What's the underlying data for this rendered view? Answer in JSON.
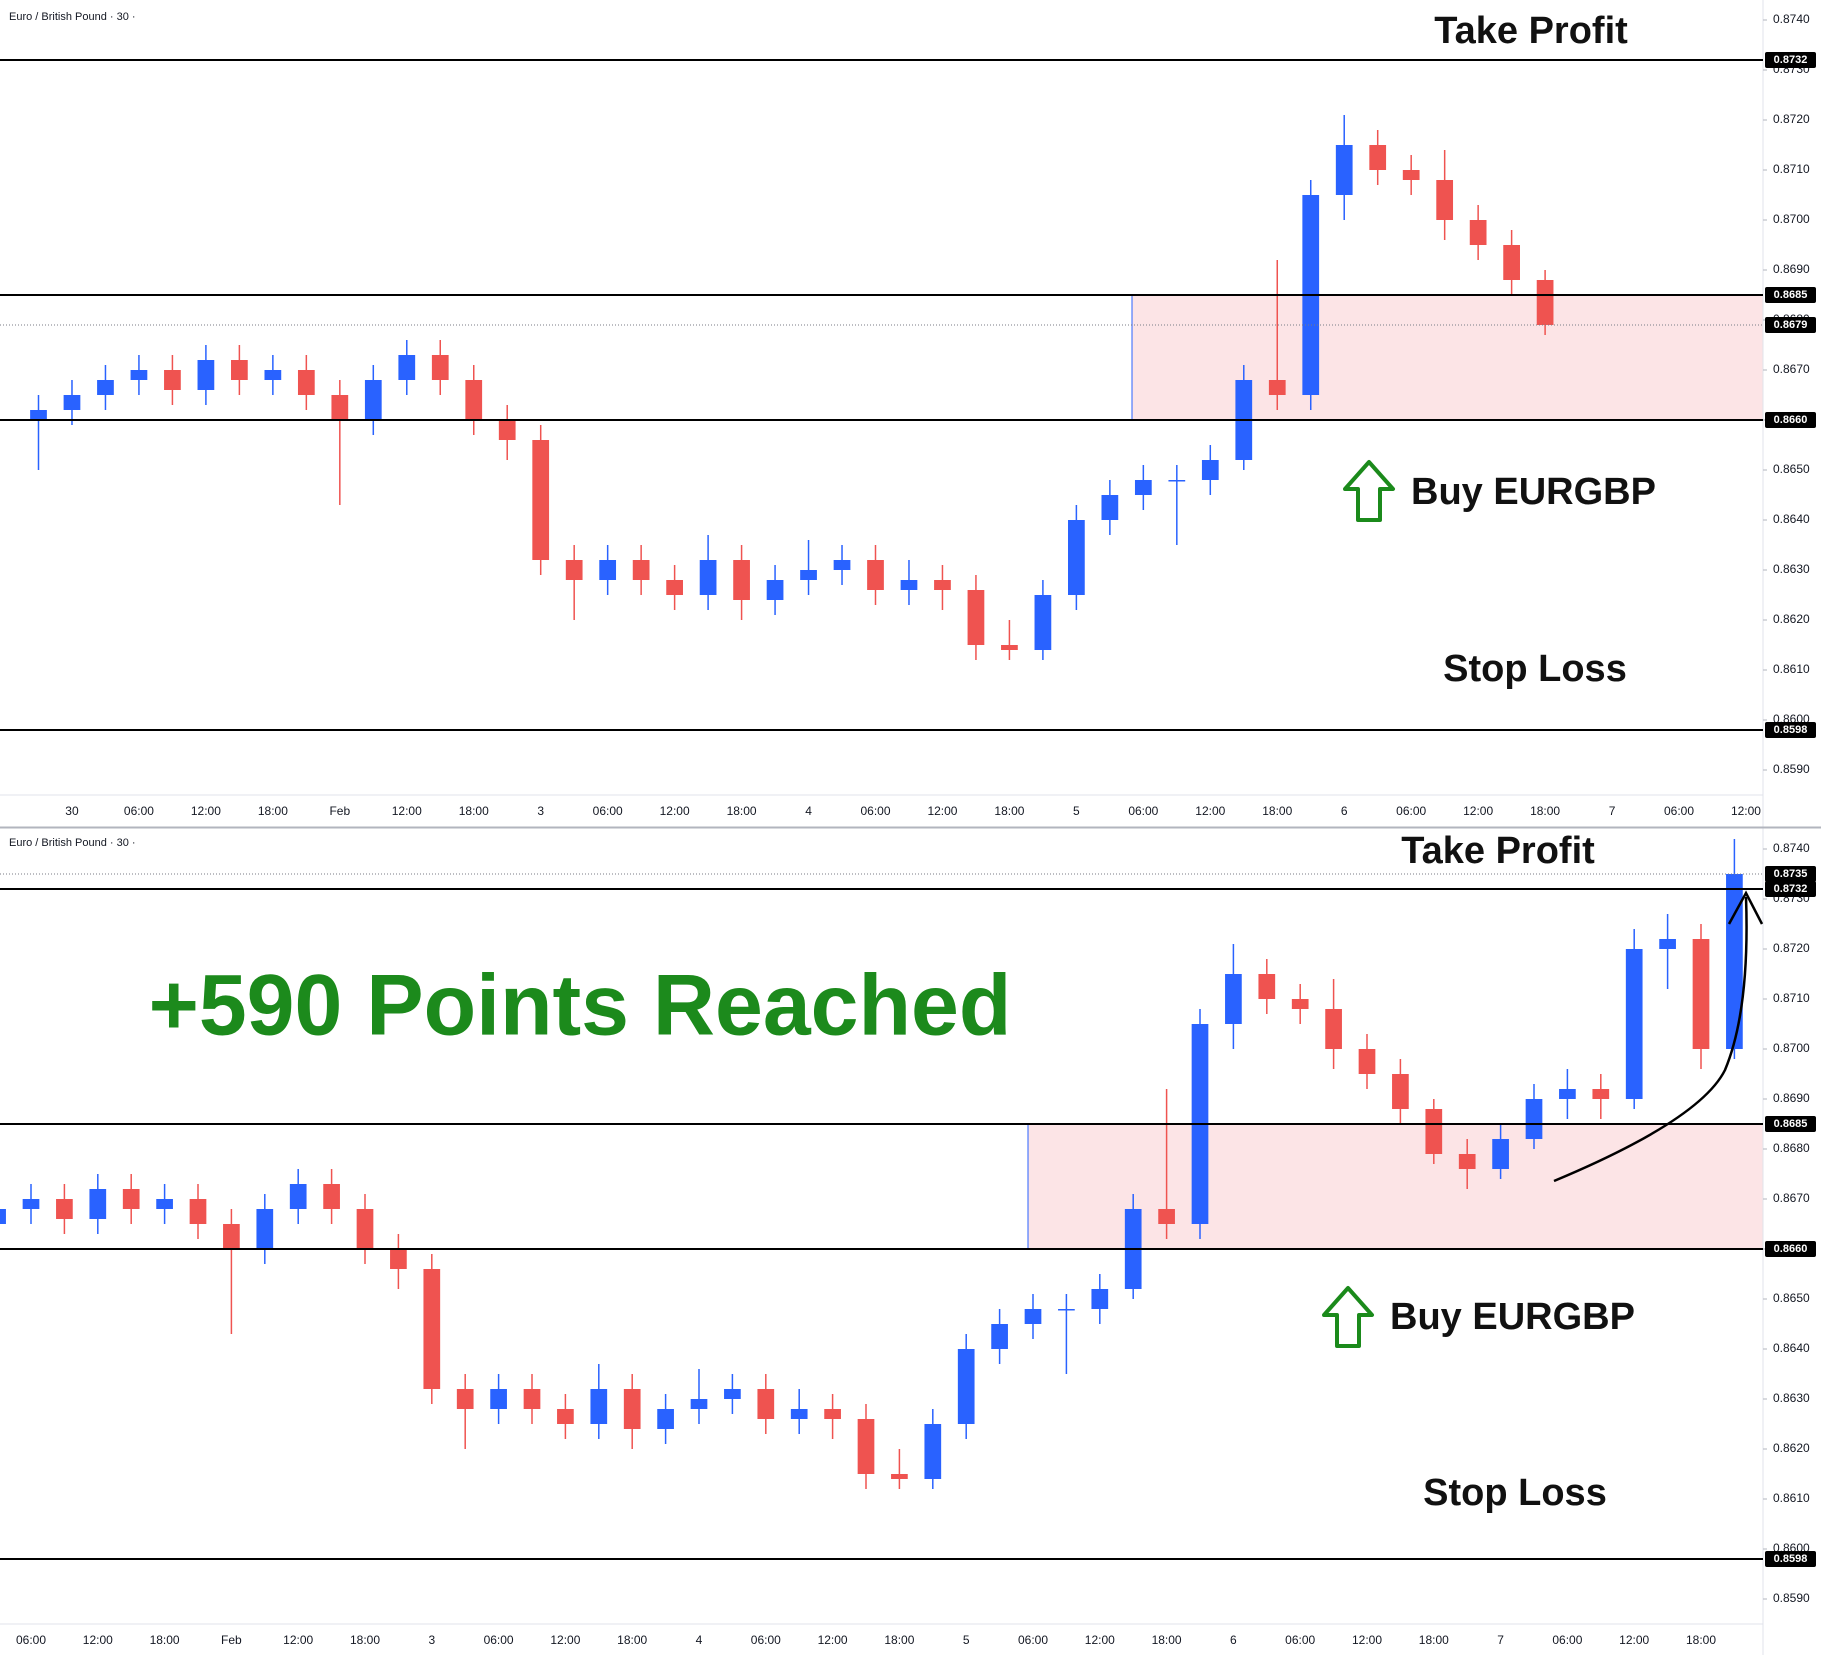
{
  "chart_data": [
    {
      "type": "candlestick",
      "title": "Euro / British Pound · 30 ·",
      "categories": [
        null,
        "30",
        null,
        "06:00",
        null,
        "12:00",
        null,
        "18:00",
        null,
        "Feb",
        null,
        "12:00",
        null,
        "18:00",
        null,
        "3",
        null,
        "06:00",
        null,
        "12:00",
        null,
        "18:00",
        null,
        "4",
        null,
        "06:00",
        null,
        "12:00",
        null,
        "18:00",
        null,
        "5",
        null,
        "06:00",
        null,
        "12:00",
        null,
        "18:00",
        null,
        "6",
        null,
        "06:00",
        null,
        "12:00",
        null,
        "18:00",
        null,
        "7",
        null,
        "06:00",
        null,
        "12:00",
        null
      ],
      "open": [
        0.866,
        0.8662,
        0.8665,
        0.8668,
        0.867,
        0.8666,
        0.8672,
        0.8668,
        0.867,
        0.8665,
        0.866,
        0.8668,
        0.8673,
        0.8668,
        0.866,
        0.8656,
        0.8632,
        0.8628,
        0.8632,
        0.8628,
        0.8625,
        0.8632,
        0.8624,
        0.8628,
        0.863,
        0.8632,
        0.8626,
        0.8628,
        0.8626,
        0.8615,
        0.8614,
        0.8625,
        0.864,
        0.8645,
        0.8648,
        0.8648,
        0.8652,
        0.8668,
        0.8665,
        0.8705,
        0.8715,
        0.871,
        0.8708,
        0.87,
        0.8695,
        0.8688,
        null,
        null,
        null,
        null,
        null,
        null,
        null
      ],
      "high": [
        0.8665,
        0.8668,
        0.8671,
        0.8673,
        0.8673,
        0.8675,
        0.8675,
        0.8673,
        0.8673,
        0.8668,
        0.8671,
        0.8676,
        0.8676,
        0.8671,
        0.8663,
        0.8659,
        0.8635,
        0.8635,
        0.8635,
        0.8631,
        0.8637,
        0.8635,
        0.8631,
        0.8636,
        0.8635,
        0.8635,
        0.8632,
        0.8631,
        0.8629,
        0.862,
        0.8628,
        0.8643,
        0.8648,
        0.8651,
        0.8651,
        0.8655,
        0.8671,
        0.8692,
        0.8708,
        0.8721,
        0.8718,
        0.8713,
        0.8714,
        0.8703,
        0.8698,
        0.869,
        null,
        null,
        null,
        null,
        null,
        null,
        null
      ],
      "low": [
        0.865,
        0.8659,
        0.8662,
        0.8665,
        0.8663,
        0.8663,
        0.8665,
        0.8665,
        0.8662,
        0.8643,
        0.8657,
        0.8665,
        0.8665,
        0.8657,
        0.8652,
        0.8629,
        0.862,
        0.8625,
        0.8625,
        0.8622,
        0.8622,
        0.862,
        0.8621,
        0.8625,
        0.8627,
        0.8623,
        0.8623,
        0.8622,
        0.8612,
        0.8612,
        0.8612,
        0.8622,
        0.8637,
        0.8642,
        0.8635,
        0.8645,
        0.865,
        0.8662,
        0.8662,
        0.87,
        0.8707,
        0.8705,
        0.8696,
        0.8692,
        0.8685,
        0.8677,
        null,
        null,
        null,
        null,
        null,
        null,
        null
      ],
      "close": [
        0.8662,
        0.8665,
        0.8668,
        0.867,
        0.8666,
        0.8672,
        0.8668,
        0.867,
        0.8665,
        0.866,
        0.8668,
        0.8673,
        0.8668,
        0.866,
        0.8656,
        0.8632,
        0.8628,
        0.8632,
        0.8628,
        0.8625,
        0.8632,
        0.8624,
        0.8628,
        0.863,
        0.8632,
        0.8626,
        0.8628,
        0.8626,
        0.8615,
        0.8614,
        0.8625,
        0.864,
        0.8645,
        0.8648,
        0.8648,
        0.8652,
        0.8668,
        0.8665,
        0.8705,
        0.8715,
        0.871,
        0.8708,
        0.87,
        0.8695,
        0.8688,
        0.8679,
        null,
        null,
        null,
        null,
        null,
        null,
        null
      ],
      "up_color": "#2962ff",
      "down_color": "#ef5350",
      "ylim": [
        0.8585,
        0.8744
      ],
      "yticks": [
        {
          "value": 0.859,
          "label": "0.8590"
        },
        {
          "value": 0.86,
          "label": "0.8600"
        },
        {
          "value": 0.861,
          "label": "0.8610"
        },
        {
          "value": 0.862,
          "label": "0.8620"
        },
        {
          "value": 0.863,
          "label": "0.8630"
        },
        {
          "value": 0.864,
          "label": "0.8640"
        },
        {
          "value": 0.865,
          "label": "0.8650"
        },
        {
          "value": 0.866,
          "label": "0.8660"
        },
        {
          "value": 0.867,
          "label": "0.8670"
        },
        {
          "value": 0.868,
          "label": "0.8680"
        },
        {
          "value": 0.869,
          "label": "0.8690"
        },
        {
          "value": 0.87,
          "label": "0.8700"
        },
        {
          "value": 0.871,
          "label": "0.8710"
        },
        {
          "value": 0.872,
          "label": "0.8720"
        },
        {
          "value": 0.873,
          "label": "0.8730"
        },
        {
          "value": 0.874,
          "label": "0.8740"
        }
      ],
      "levels": [
        {
          "value": 0.8732,
          "label": "0.8732"
        },
        {
          "value": 0.8685,
          "label": "0.8685"
        },
        {
          "value": 0.866,
          "label": "0.8660"
        },
        {
          "value": 0.8598,
          "label": "0.8598"
        }
      ],
      "last_price": {
        "value": 0.8679,
        "label": "0.8679"
      },
      "zone": [
        0.866,
        0.8685
      ],
      "annotations": {
        "take_profit": "Take Profit",
        "buy": "Buy EURGBP",
        "stop_loss": "Stop Loss"
      }
    },
    {
      "type": "candlestick",
      "title": "Euro / British Pound · 30 ·",
      "categories": [
        null,
        "06:00",
        null,
        "12:00",
        null,
        "18:00",
        null,
        "Feb",
        null,
        "12:00",
        null,
        "18:00",
        null,
        "3",
        null,
        "06:00",
        null,
        "12:00",
        null,
        "18:00",
        null,
        "4",
        null,
        "06:00",
        null,
        "12:00",
        null,
        "18:00",
        null,
        "5",
        null,
        "06:00",
        null,
        "12:00",
        null,
        "18:00",
        null,
        "6",
        null,
        "06:00",
        null,
        "12:00",
        null,
        "18:00",
        null,
        "7",
        null,
        "06:00",
        null,
        "12:00",
        null,
        "18:00",
        null
      ],
      "open": [
        0.8665,
        0.8668,
        0.867,
        0.8666,
        0.8672,
        0.8668,
        0.867,
        0.8665,
        0.866,
        0.8668,
        0.8673,
        0.8668,
        0.866,
        0.8656,
        0.8632,
        0.8628,
        0.8632,
        0.8628,
        0.8625,
        0.8632,
        0.8624,
        0.8628,
        0.863,
        0.8632,
        0.8626,
        0.8628,
        0.8626,
        0.8615,
        0.8614,
        0.8625,
        0.864,
        0.8645,
        0.8648,
        0.8648,
        0.8652,
        0.8668,
        0.8665,
        0.8705,
        0.8715,
        0.871,
        0.8708,
        0.87,
        0.8695,
        0.8688,
        0.8679,
        0.8676,
        0.8682,
        0.869,
        0.8692,
        0.869,
        0.872,
        0.8722,
        0.87
      ],
      "high": [
        0.8671,
        0.8673,
        0.8673,
        0.8675,
        0.8675,
        0.8673,
        0.8673,
        0.8668,
        0.8671,
        0.8676,
        0.8676,
        0.8671,
        0.8663,
        0.8659,
        0.8635,
        0.8635,
        0.8635,
        0.8631,
        0.8637,
        0.8635,
        0.8631,
        0.8636,
        0.8635,
        0.8635,
        0.8632,
        0.8631,
        0.8629,
        0.862,
        0.8628,
        0.8643,
        0.8648,
        0.8651,
        0.8651,
        0.8655,
        0.8671,
        0.8692,
        0.8708,
        0.8721,
        0.8718,
        0.8713,
        0.8714,
        0.8703,
        0.8698,
        0.869,
        0.8682,
        0.8685,
        0.8693,
        0.8696,
        0.8695,
        0.8724,
        0.8727,
        0.8725,
        0.8742
      ],
      "low": [
        0.8662,
        0.8665,
        0.8663,
        0.8663,
        0.8665,
        0.8665,
        0.8662,
        0.8643,
        0.8657,
        0.8665,
        0.8665,
        0.8657,
        0.8652,
        0.8629,
        0.862,
        0.8625,
        0.8625,
        0.8622,
        0.8622,
        0.862,
        0.8621,
        0.8625,
        0.8627,
        0.8623,
        0.8623,
        0.8622,
        0.8612,
        0.8612,
        0.8612,
        0.8622,
        0.8637,
        0.8642,
        0.8635,
        0.8645,
        0.865,
        0.8662,
        0.8662,
        0.87,
        0.8707,
        0.8705,
        0.8696,
        0.8692,
        0.8685,
        0.8677,
        0.8672,
        0.8674,
        0.868,
        0.8686,
        0.8686,
        0.8688,
        0.8712,
        0.8696,
        0.8698
      ],
      "close": [
        0.8668,
        0.867,
        0.8666,
        0.8672,
        0.8668,
        0.867,
        0.8665,
        0.866,
        0.8668,
        0.8673,
        0.8668,
        0.866,
        0.8656,
        0.8632,
        0.8628,
        0.8632,
        0.8628,
        0.8625,
        0.8632,
        0.8624,
        0.8628,
        0.863,
        0.8632,
        0.8626,
        0.8628,
        0.8626,
        0.8615,
        0.8614,
        0.8625,
        0.864,
        0.8645,
        0.8648,
        0.8648,
        0.8652,
        0.8668,
        0.8665,
        0.8705,
        0.8715,
        0.871,
        0.8708,
        0.87,
        0.8695,
        0.8688,
        0.8679,
        0.8676,
        0.8682,
        0.869,
        0.8692,
        0.869,
        0.872,
        0.8722,
        0.87,
        0.8735
      ],
      "up_color": "#2962ff",
      "down_color": "#ef5350",
      "ylim": [
        0.8585,
        0.8744
      ],
      "yticks": [
        {
          "value": 0.859,
          "label": "0.8590"
        },
        {
          "value": 0.86,
          "label": "0.8600"
        },
        {
          "value": 0.861,
          "label": "0.8610"
        },
        {
          "value": 0.862,
          "label": "0.8620"
        },
        {
          "value": 0.863,
          "label": "0.8630"
        },
        {
          "value": 0.864,
          "label": "0.8640"
        },
        {
          "value": 0.865,
          "label": "0.8650"
        },
        {
          "value": 0.866,
          "label": "0.8660"
        },
        {
          "value": 0.867,
          "label": "0.8670"
        },
        {
          "value": 0.868,
          "label": "0.8680"
        },
        {
          "value": 0.869,
          "label": "0.8690"
        },
        {
          "value": 0.87,
          "label": "0.8700"
        },
        {
          "value": 0.871,
          "label": "0.8710"
        },
        {
          "value": 0.872,
          "label": "0.8720"
        },
        {
          "value": 0.873,
          "label": "0.8730"
        },
        {
          "value": 0.874,
          "label": "0.8740"
        }
      ],
      "levels": [
        {
          "value": 0.8732,
          "label": "0.8732"
        },
        {
          "value": 0.8685,
          "label": "0.8685"
        },
        {
          "value": 0.866,
          "label": "0.8660"
        },
        {
          "value": 0.8598,
          "label": "0.8598"
        }
      ],
      "last_price": {
        "value": 0.8735,
        "label": "0.8735"
      },
      "zone": [
        0.866,
        0.8685
      ],
      "annotations": {
        "take_profit": "Take Profit",
        "buy": "Buy EURGBP",
        "stop_loss": "Stop Loss"
      },
      "headline": "+590 Points Reached"
    }
  ]
}
